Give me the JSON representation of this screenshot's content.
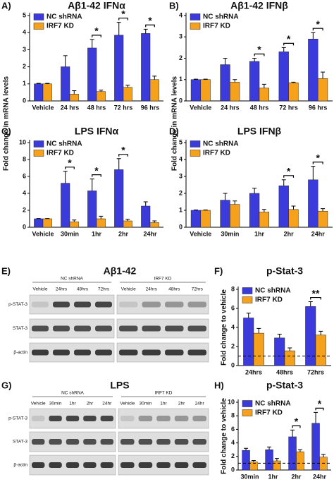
{
  "chart_data": [
    {
      "type": "bar",
      "panel": "A)",
      "title": "Aβ1-42 IFNα",
      "ylabel": "Fold change in mRNA levels",
      "categories": [
        "Vehicle",
        "24 hrs",
        "48 hrs",
        "72 hrs",
        "96 hrs"
      ],
      "series": [
        {
          "name": "NC shRNA",
          "color": "#3b3bdc",
          "values": [
            1.0,
            2.0,
            3.1,
            3.85,
            3.95
          ],
          "errors": [
            0.03,
            0.65,
            0.5,
            0.75,
            0.25
          ]
        },
        {
          "name": "IRF7 KD",
          "color": "#f6a11c",
          "values": [
            1.0,
            0.4,
            0.55,
            0.8,
            1.25
          ],
          "errors": [
            0.03,
            0.2,
            0.08,
            0.12,
            0.2
          ]
        }
      ],
      "significance": [
        null,
        null,
        "*",
        "*",
        "*"
      ],
      "ylim": [
        0,
        5
      ],
      "yticks": [
        0,
        1,
        2,
        3,
        4,
        5
      ]
    },
    {
      "type": "bar",
      "panel": "B)",
      "title": "Aβ1-42 IFNβ",
      "ylabel": "Fold change in mRNA levels",
      "categories": [
        "Vehicle",
        "24 hrs",
        "48 hrs",
        "72 hrs",
        "96 hrs"
      ],
      "series": [
        {
          "name": "NC shRNA",
          "color": "#3b3bdc",
          "values": [
            1.0,
            1.7,
            1.85,
            2.3,
            2.9
          ],
          "errors": [
            0.02,
            0.3,
            0.15,
            0.2,
            0.3
          ]
        },
        {
          "name": "IRF7 KD",
          "color": "#f6a11c",
          "values": [
            1.0,
            0.88,
            0.6,
            0.85,
            1.05
          ],
          "errors": [
            0.02,
            0.12,
            0.18,
            0.03,
            0.3
          ]
        }
      ],
      "significance": [
        null,
        null,
        "*",
        "*",
        "*"
      ],
      "ylim": [
        0,
        4
      ],
      "yticks": [
        0,
        1,
        2,
        3,
        4
      ]
    },
    {
      "type": "bar",
      "panel": "C)",
      "title": "LPS IFNα",
      "categories": [
        "Vehicle",
        "30min",
        "1hr",
        "2hr",
        "24hr"
      ],
      "series": [
        {
          "name": "NC shRNA",
          "color": "#3b3bdc",
          "values": [
            1.0,
            5.2,
            4.3,
            6.8,
            2.5
          ],
          "errors": [
            0.03,
            1.4,
            1.4,
            1.3,
            0.5
          ]
        },
        {
          "name": "IRF7 KD",
          "color": "#f6a11c",
          "values": [
            1.0,
            0.65,
            1.0,
            0.75,
            0.55
          ],
          "errors": [
            0.03,
            0.2,
            0.3,
            0.2,
            0.2
          ]
        }
      ],
      "significance": [
        null,
        "*",
        "*",
        "*",
        null
      ],
      "ylim": [
        0,
        10
      ],
      "yticks": [
        0,
        2,
        4,
        6,
        8,
        10
      ]
    },
    {
      "type": "bar",
      "panel": "D)",
      "title": "LPS IFNβ",
      "categories": [
        "Vehicle",
        "30min",
        "1hr",
        "2hr",
        "24hr"
      ],
      "series": [
        {
          "name": "NC shRNA",
          "color": "#3b3bdc",
          "values": [
            1.0,
            1.6,
            2.0,
            2.45,
            2.8
          ],
          "errors": [
            0.02,
            0.4,
            0.3,
            0.35,
            0.8
          ]
        },
        {
          "name": "IRF7 KD",
          "color": "#f6a11c",
          "values": [
            1.0,
            1.35,
            0.9,
            1.05,
            0.95
          ],
          "errors": [
            0.02,
            0.2,
            0.15,
            0.2,
            0.15
          ]
        }
      ],
      "significance": [
        null,
        null,
        null,
        "*",
        "*"
      ],
      "ylim": [
        0,
        5
      ],
      "yticks": [
        0,
        1,
        2,
        3,
        4,
        5
      ]
    },
    {
      "type": "bar",
      "panel": "F)",
      "title": "p-Stat-3",
      "ylabel": "Fold change to vehicle",
      "categories": [
        "24hrs",
        "48hrs",
        "72hrs"
      ],
      "series": [
        {
          "name": "NC shRNA",
          "color": "#3b3bdc",
          "values": [
            5.0,
            2.9,
            6.2
          ],
          "errors": [
            0.5,
            0.4,
            0.5
          ]
        },
        {
          "name": "IRF7 KD",
          "color": "#f6a11c",
          "values": [
            3.4,
            1.55,
            3.2
          ],
          "errors": [
            0.5,
            0.3,
            0.4
          ]
        }
      ],
      "significance": [
        null,
        null,
        "**"
      ],
      "reference_line": 1,
      "ylim": [
        0,
        8
      ],
      "yticks": [
        0,
        2,
        4,
        6,
        8
      ]
    },
    {
      "type": "bar",
      "panel": "H)",
      "title": "p-Stat-3",
      "ylabel": "Fold change to vehicle",
      "categories": [
        "30min",
        "1hr",
        "2hr",
        "24hr"
      ],
      "series": [
        {
          "name": "NC shRNA",
          "color": "#3b3bdc",
          "values": [
            2.9,
            3.0,
            4.9,
            6.9
          ],
          "errors": [
            0.3,
            0.4,
            1.0,
            1.6
          ]
        },
        {
          "name": "IRF7 KD",
          "color": "#f6a11c",
          "values": [
            1.2,
            1.35,
            2.7,
            1.9
          ],
          "errors": [
            0.2,
            0.35,
            0.3,
            0.4
          ]
        }
      ],
      "significance": [
        null,
        null,
        "*",
        "*"
      ],
      "reference_line": 1,
      "ylim": [
        0,
        10
      ],
      "yticks": [
        0,
        2,
        4,
        6,
        8,
        10
      ]
    }
  ],
  "blots": [
    {
      "panel": "E)",
      "title": "Aβ1-42",
      "groups": [
        "NC shRNA",
        "IRF7 KD"
      ],
      "lanes": [
        [
          "Vehicle",
          "24hrs",
          "48hrs",
          "72hrs"
        ],
        [
          "Vehicle",
          "24hrs",
          "48hrs",
          "72hrs"
        ]
      ],
      "rows": [
        "p-STAT-3",
        "STAT-3",
        "β-actin"
      ]
    },
    {
      "panel": "G)",
      "title": "LPS",
      "groups": [
        "NC shRNA",
        "IRF7 KD"
      ],
      "lanes": [
        [
          "Vehicle",
          "30min",
          "1hr",
          "2hr",
          "24hr"
        ],
        [
          "Vehicle",
          "30min",
          "1hr",
          "2hr",
          "24hr"
        ]
      ],
      "rows": [
        "p-STAT-3",
        "STAT-3",
        "β-actin"
      ]
    }
  ]
}
